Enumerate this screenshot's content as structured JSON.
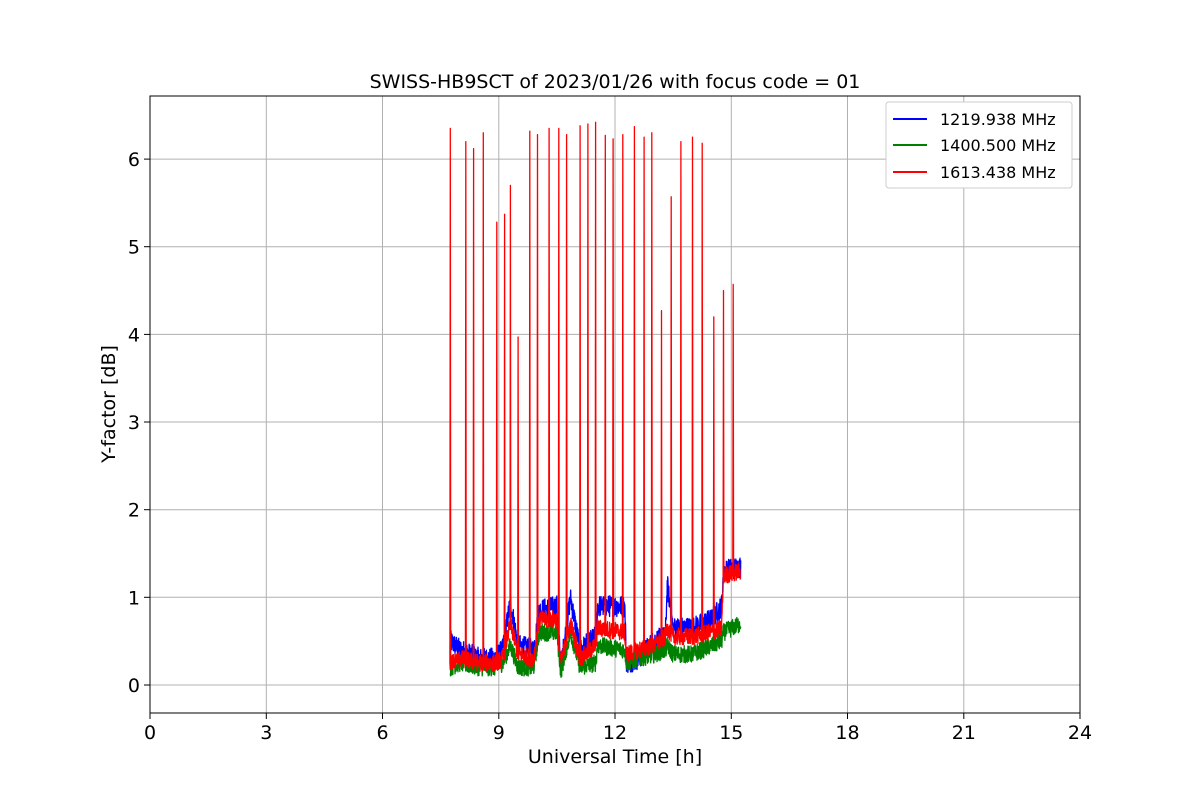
{
  "chart_data": {
    "type": "line",
    "title": "SWISS-HB9SCT of 2023/01/26 with focus code = 01",
    "xlabel": "Universal Time [h]",
    "ylabel": "Y-factor [dB]",
    "xlim": [
      0,
      24
    ],
    "ylim": [
      -0.32,
      6.72
    ],
    "xticks": [
      0,
      3,
      6,
      9,
      12,
      15,
      18,
      21,
      24
    ],
    "yticks": [
      0,
      1,
      2,
      3,
      4,
      5,
      6
    ],
    "grid": true,
    "legend_position": "top-right",
    "series": [
      {
        "name": "1219.938 MHz",
        "color": "#0000ff",
        "baseline": [
          [
            7.75,
            0.5
          ],
          [
            8.0,
            0.4
          ],
          [
            8.5,
            0.3
          ],
          [
            8.9,
            0.3
          ],
          [
            9.1,
            0.4
          ],
          [
            9.3,
            0.95
          ],
          [
            9.5,
            0.45
          ],
          [
            9.9,
            0.4
          ],
          [
            10.05,
            0.85
          ],
          [
            10.5,
            0.9
          ],
          [
            10.6,
            0.2
          ],
          [
            10.85,
            1.0
          ],
          [
            11.1,
            0.4
          ],
          [
            11.5,
            0.55
          ],
          [
            11.55,
            0.9
          ],
          [
            12.25,
            0.9
          ],
          [
            12.3,
            0.25
          ],
          [
            12.6,
            0.3
          ],
          [
            13.0,
            0.5
          ],
          [
            13.3,
            0.55
          ],
          [
            13.35,
            1.15
          ],
          [
            13.5,
            0.65
          ],
          [
            14.0,
            0.65
          ],
          [
            14.5,
            0.75
          ],
          [
            14.75,
            0.9
          ],
          [
            14.8,
            1.3
          ],
          [
            15.25,
            1.35
          ]
        ]
      },
      {
        "name": "1400.500 MHz",
        "color": "#008000",
        "baseline": [
          [
            7.75,
            0.2
          ],
          [
            8.0,
            0.25
          ],
          [
            8.5,
            0.2
          ],
          [
            8.9,
            0.2
          ],
          [
            9.1,
            0.25
          ],
          [
            9.3,
            0.45
          ],
          [
            9.5,
            0.2
          ],
          [
            9.9,
            0.2
          ],
          [
            10.05,
            0.6
          ],
          [
            10.5,
            0.6
          ],
          [
            10.6,
            0.15
          ],
          [
            10.85,
            0.6
          ],
          [
            11.1,
            0.2
          ],
          [
            11.5,
            0.25
          ],
          [
            11.55,
            0.45
          ],
          [
            12.25,
            0.4
          ],
          [
            12.3,
            0.25
          ],
          [
            12.6,
            0.3
          ],
          [
            13.0,
            0.35
          ],
          [
            13.3,
            0.4
          ],
          [
            13.35,
            0.45
          ],
          [
            13.5,
            0.35
          ],
          [
            14.0,
            0.35
          ],
          [
            14.5,
            0.45
          ],
          [
            14.75,
            0.5
          ],
          [
            14.8,
            0.6
          ],
          [
            15.25,
            0.7
          ]
        ]
      },
      {
        "name": "1613.438 MHz",
        "color": "#ff0000",
        "baseline": [
          [
            7.75,
            0.25
          ],
          [
            8.0,
            0.3
          ],
          [
            8.5,
            0.25
          ],
          [
            8.9,
            0.25
          ],
          [
            9.1,
            0.3
          ],
          [
            9.3,
            0.7
          ],
          [
            9.5,
            0.35
          ],
          [
            9.9,
            0.3
          ],
          [
            10.05,
            0.75
          ],
          [
            10.5,
            0.75
          ],
          [
            10.6,
            0.25
          ],
          [
            10.85,
            0.7
          ],
          [
            11.1,
            0.3
          ],
          [
            11.5,
            0.45
          ],
          [
            11.55,
            0.65
          ],
          [
            12.25,
            0.6
          ],
          [
            12.3,
            0.35
          ],
          [
            12.6,
            0.4
          ],
          [
            13.0,
            0.45
          ],
          [
            13.3,
            0.55
          ],
          [
            13.35,
            0.65
          ],
          [
            13.5,
            0.55
          ],
          [
            14.0,
            0.55
          ],
          [
            14.5,
            0.6
          ],
          [
            14.75,
            0.65
          ],
          [
            14.8,
            1.25
          ],
          [
            15.25,
            1.3
          ]
        ],
        "peaks": [
          [
            7.75,
            6.35
          ],
          [
            8.15,
            6.2
          ],
          [
            8.35,
            6.12
          ],
          [
            8.6,
            6.3
          ],
          [
            8.95,
            5.28
          ],
          [
            9.15,
            5.37
          ],
          [
            9.3,
            5.7
          ],
          [
            9.5,
            3.97
          ],
          [
            9.8,
            6.32
          ],
          [
            10.0,
            6.28
          ],
          [
            10.3,
            6.35
          ],
          [
            10.55,
            6.35
          ],
          [
            10.75,
            6.28
          ],
          [
            11.1,
            6.38
          ],
          [
            11.3,
            6.4
          ],
          [
            11.5,
            6.42
          ],
          [
            11.75,
            6.27
          ],
          [
            11.95,
            6.23
          ],
          [
            12.2,
            6.28
          ],
          [
            12.5,
            6.37
          ],
          [
            12.75,
            6.25
          ],
          [
            12.95,
            6.3
          ],
          [
            13.2,
            4.27
          ],
          [
            13.45,
            5.57
          ],
          [
            13.7,
            6.2
          ],
          [
            14.0,
            6.25
          ],
          [
            14.25,
            6.18
          ],
          [
            14.55,
            4.2
          ],
          [
            14.8,
            4.5
          ],
          [
            15.05,
            4.57
          ]
        ]
      }
    ]
  }
}
